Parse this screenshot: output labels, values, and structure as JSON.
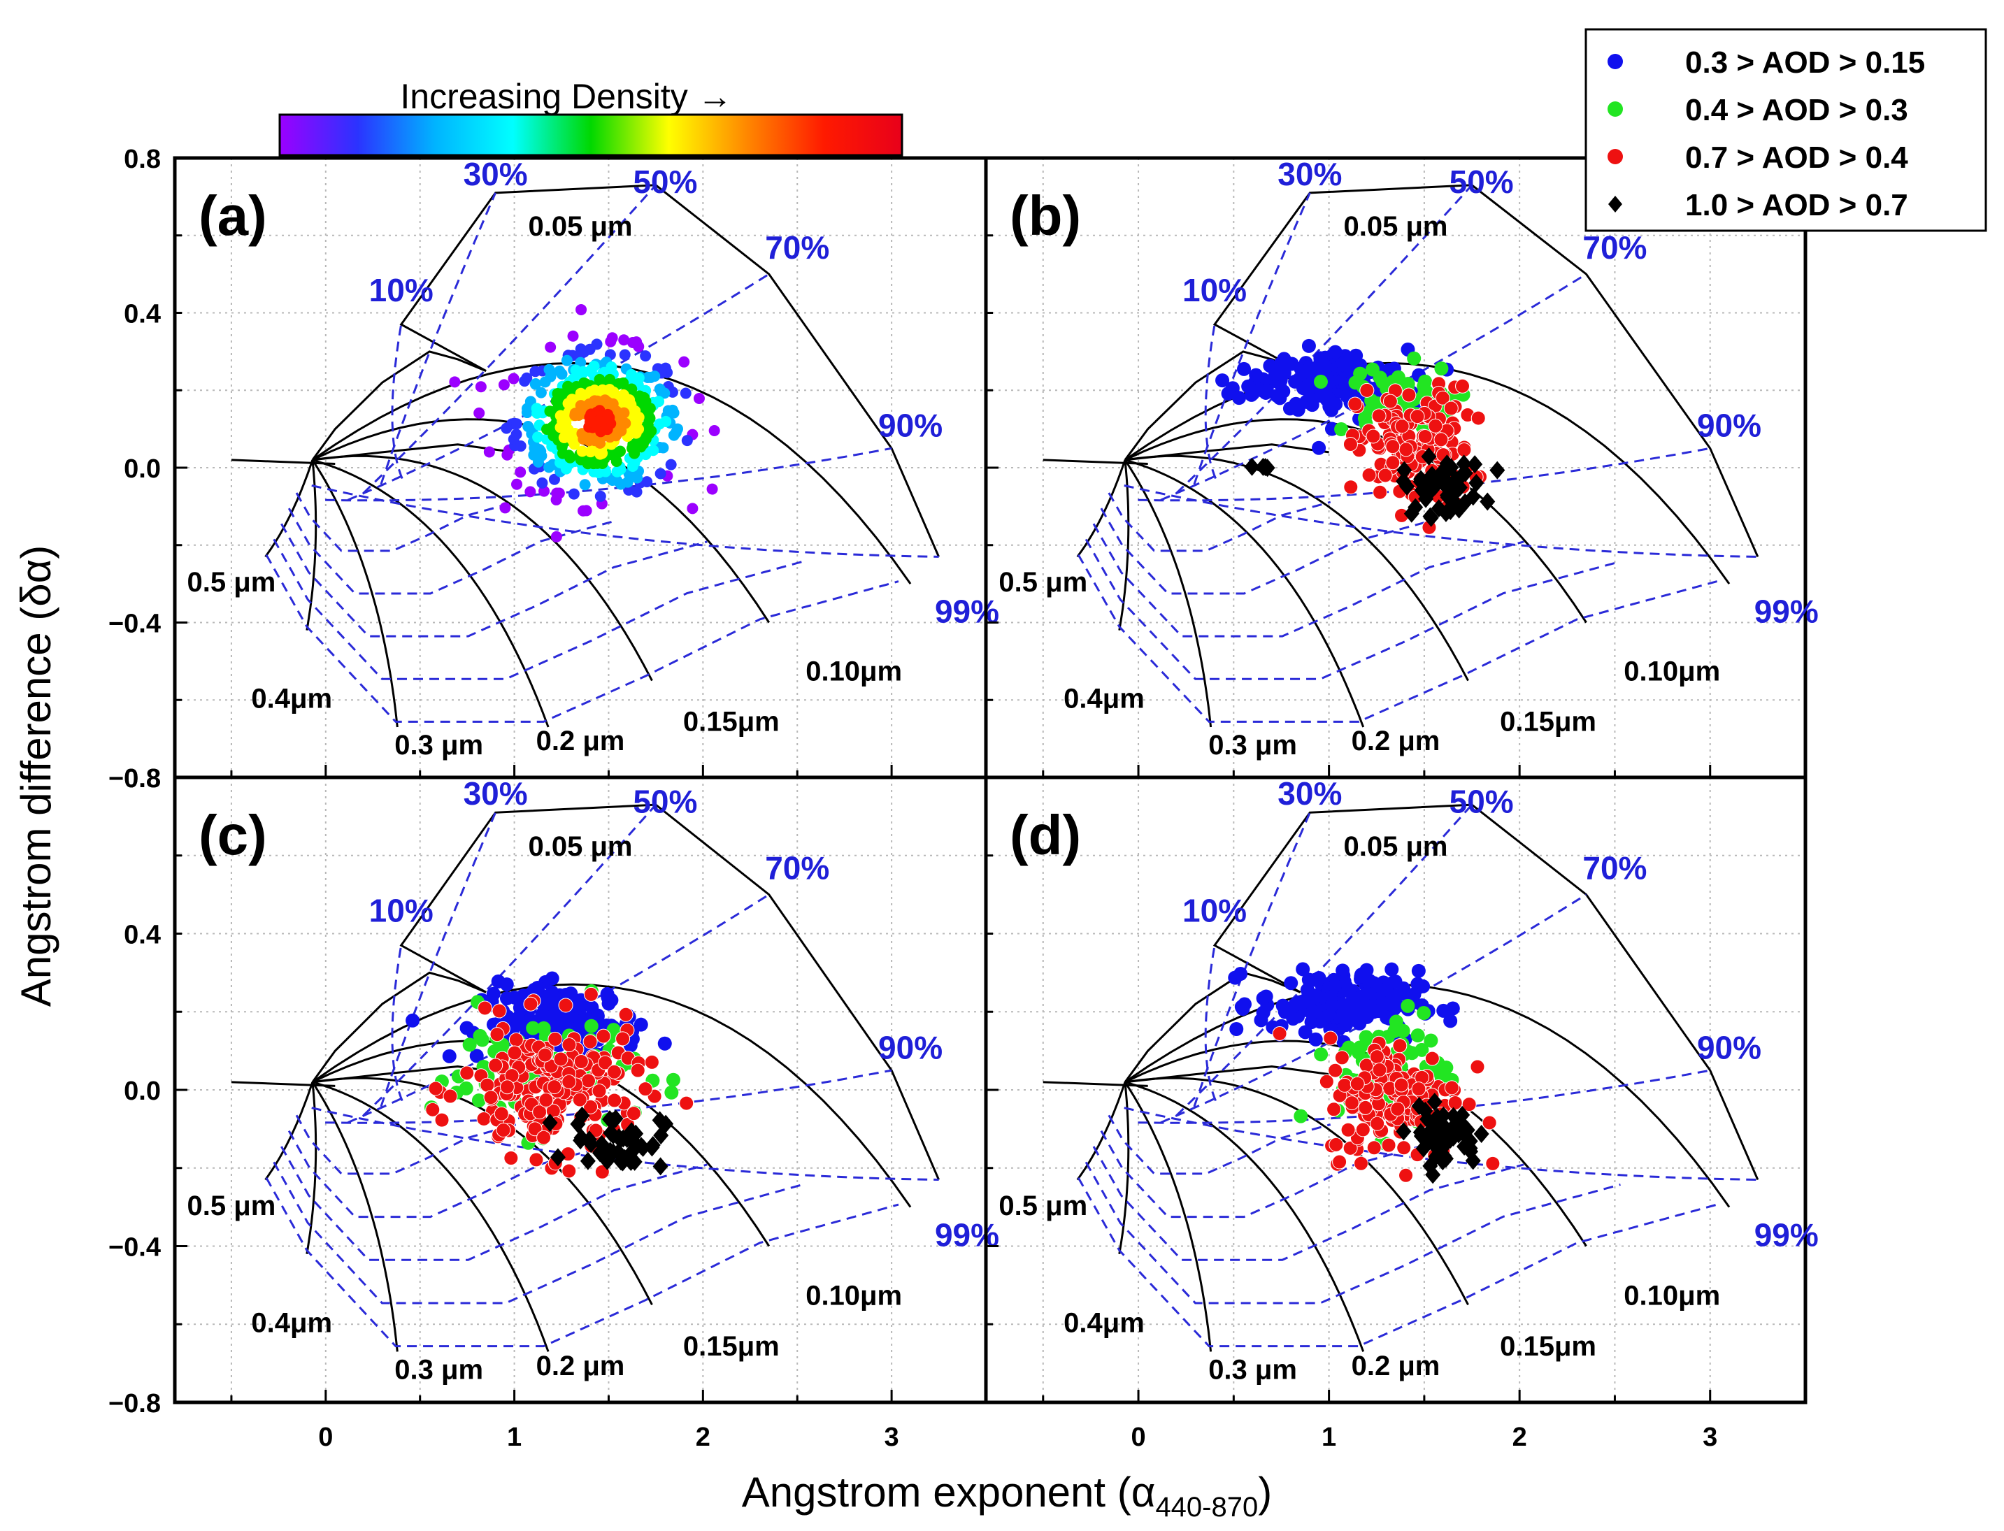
{
  "figure": {
    "colorbar_label": "Increasing Density →",
    "colorbar_colors": [
      "#9b00ff",
      "#2b33ff",
      "#00b4ff",
      "#00ffff",
      "#00d800",
      "#ffff00",
      "#ff8800",
      "#ff1a00",
      "#e8001a"
    ]
  },
  "chart_data": {
    "type": "scatter",
    "xlabel": "Angstrom exponent (α",
    "xlabel_sub": "440-870",
    "xlabel_close": ")",
    "ylabel": "Angstrom difference (δα)",
    "xlim": [
      -0.8,
      3.5
    ],
    "ylim": [
      -0.8,
      0.8
    ],
    "x_ticks": [
      "0",
      "1",
      "2",
      "3"
    ],
    "x_tick_values": [
      0,
      1,
      2,
      3
    ],
    "y_ticks": [
      "0.8",
      "0.4",
      "0.0",
      "−0.4",
      "−0.8"
    ],
    "y_tick_values": [
      0.8,
      0.4,
      0.0,
      -0.4,
      -0.8
    ],
    "legend": [
      {
        "label": "0.3 > AOD > 0.15",
        "color": "#1010ee",
        "marker": "circle"
      },
      {
        "label": "0.4 > AOD > 0.3",
        "color": "#22e522",
        "marker": "circle"
      },
      {
        "label": "0.7 > AOD > 0.4",
        "color": "#ee1111",
        "marker": "circle"
      },
      {
        "label": "1.0 > AOD > 0.7",
        "color": "#000000",
        "marker": "diamond"
      }
    ],
    "grid": {
      "fine_mode_fraction_labels": [
        "10%",
        "30%",
        "50%",
        "70%",
        "90%",
        "99%"
      ],
      "fine_mode_fraction_values": [
        0.1,
        0.3,
        0.5,
        0.7,
        0.9,
        0.99
      ],
      "radius_labels": [
        "0.05 μm",
        "0.10μm",
        "0.15μm",
        "0.2 μm",
        "0.3 μm",
        "0.4μm",
        "0.5 μm"
      ],
      "radius_values": [
        0.05,
        0.1,
        0.15,
        0.2,
        0.3,
        0.4,
        0.5
      ],
      "vertex": [
        -0.07,
        0.02
      ],
      "ends": [
        [
          -0.32,
          -0.23
        ],
        [
          -0.1,
          -0.42
        ],
        [
          0.38,
          -0.67
        ],
        [
          1.18,
          -0.67
        ],
        [
          1.73,
          -0.55
        ],
        [
          2.35,
          -0.4
        ],
        [
          3.1,
          -0.3
        ]
      ],
      "starts": [
        [
          0.4,
          0.37
        ],
        [
          0.9,
          0.71
        ],
        [
          1.75,
          0.73
        ],
        [
          2.35,
          0.5
        ],
        [
          3.0,
          0.05
        ],
        [
          3.25,
          -0.23
        ]
      ],
      "inner_boundary": [
        [
          -0.07,
          0.02
        ],
        [
          0.05,
          0.1
        ],
        [
          0.3,
          0.22
        ],
        [
          0.55,
          0.3
        ],
        [
          0.7,
          0.28
        ],
        [
          0.85,
          0.25
        ]
      ],
      "lower_boundary": [
        [
          -0.07,
          0.02
        ],
        [
          0.3,
          0.04
        ],
        [
          0.7,
          0.06
        ],
        [
          1.0,
          0.04
        ]
      ],
      "overlap_line": [
        [
          -0.5,
          0.02
        ],
        [
          0.05,
          0.01
        ]
      ]
    },
    "panels": [
      {
        "id": "a",
        "label": "(a)",
        "description": "density-coloured scatter of all points",
        "density_cluster": {
          "center": [
            1.45,
            0.12
          ],
          "spread": [
            0.4,
            0.16
          ],
          "count": 520
        }
      },
      {
        "id": "b",
        "label": "(b)",
        "series": [
          {
            "name": "0.3 > AOD > 0.15",
            "clusters": [
              {
                "center": [
                  1.05,
                  0.22
                ],
                "spread": [
                  0.3,
                  0.07
                ],
                "count": 160
              },
              {
                "center": [
                  0.65,
                  0.22
                ],
                "spread": [
                  0.12,
                  0.04
                ],
                "count": 30
              }
            ]
          },
          {
            "name": "0.4 > AOD > 0.3",
            "clusters": [
              {
                "center": [
                  1.35,
                  0.17
                ],
                "spread": [
                  0.25,
                  0.08
                ],
                "count": 70
              }
            ]
          },
          {
            "name": "0.7 > AOD > 0.4",
            "clusters": [
              {
                "center": [
                  1.45,
                  0.05
                ],
                "spread": [
                  0.25,
                  0.13
                ],
                "count": 150
              }
            ]
          },
          {
            "name": "1.0 > AOD > 0.7",
            "clusters": [
              {
                "center": [
                  1.6,
                  -0.05
                ],
                "spread": [
                  0.18,
                  0.06
                ],
                "count": 50
              },
              {
                "center": [
                  0.65,
                  0.0
                ],
                "spread": [
                  0.03,
                  0.01
                ],
                "count": 4
              }
            ]
          }
        ]
      },
      {
        "id": "c",
        "label": "(c)",
        "series": [
          {
            "name": "0.3 > AOD > 0.15",
            "clusters": [
              {
                "center": [
                  1.25,
                  0.17
                ],
                "spread": [
                  0.35,
                  0.08
                ],
                "count": 170
              }
            ]
          },
          {
            "name": "0.4 > AOD > 0.3",
            "clusters": [
              {
                "center": [
                  1.1,
                  0.05
                ],
                "spread": [
                  0.45,
                  0.13
                ],
                "count": 70
              }
            ]
          },
          {
            "name": "0.7 > AOD > 0.4",
            "clusters": [
              {
                "center": [
                  1.2,
                  0.0
                ],
                "spread": [
                  0.4,
                  0.14
                ],
                "count": 190
              }
            ]
          },
          {
            "name": "1.0 > AOD > 0.7",
            "clusters": [
              {
                "center": [
                  1.55,
                  -0.13
                ],
                "spread": [
                  0.2,
                  0.06
                ],
                "count": 50
              }
            ]
          }
        ]
      },
      {
        "id": "d",
        "label": "(d)",
        "series": [
          {
            "name": "0.3 > AOD > 0.15",
            "clusters": [
              {
                "center": [
                  1.05,
                  0.22
                ],
                "spread": [
                  0.35,
                  0.07
                ],
                "count": 170
              }
            ]
          },
          {
            "name": "0.4 > AOD > 0.3",
            "clusters": [
              {
                "center": [
                  1.35,
                  0.05
                ],
                "spread": [
                  0.25,
                  0.13
                ],
                "count": 70
              }
            ]
          },
          {
            "name": "0.7 > AOD > 0.4",
            "clusters": [
              {
                "center": [
                  1.35,
                  -0.02
                ],
                "spread": [
                  0.3,
                  0.13
                ],
                "count": 160
              }
            ]
          },
          {
            "name": "1.0 > AOD > 0.7",
            "clusters": [
              {
                "center": [
                  1.6,
                  -0.12
                ],
                "spread": [
                  0.15,
                  0.06
                ],
                "count": 50
              }
            ]
          }
        ]
      }
    ]
  }
}
